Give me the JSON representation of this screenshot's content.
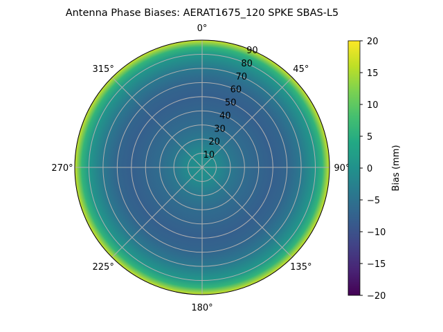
{
  "chart_data": {
    "type": "heatmap",
    "projection": "polar",
    "title": "Antenna Phase Biases: AERAT1675_120   SPKE SBAS-L5",
    "angular_ticks": [
      "0°",
      "45°",
      "90°",
      "135°",
      "180°",
      "225°",
      "270°",
      "315°"
    ],
    "radial_ticks": [
      "10",
      "20",
      "30",
      "40",
      "50",
      "60",
      "70",
      "80",
      "90"
    ],
    "radial_range": [
      0,
      90
    ],
    "theta_zero": "north",
    "theta_direction": "clockwise",
    "grid": true,
    "colormap": "viridis",
    "colorbar": {
      "label": "Bias (mm)",
      "range": [
        -20,
        20
      ],
      "ticks": [
        "20",
        "15",
        "10",
        "5",
        "0",
        "−5",
        "−10",
        "−15",
        "−20"
      ],
      "placement": "right"
    },
    "radial_profile": {
      "radius": [
        0,
        10,
        20,
        30,
        40,
        50,
        60,
        70,
        80,
        85,
        90
      ],
      "bias_mm": [
        0,
        -1,
        -4,
        -6,
        -7,
        -8,
        -7,
        -4,
        1,
        6,
        17
      ]
    }
  }
}
